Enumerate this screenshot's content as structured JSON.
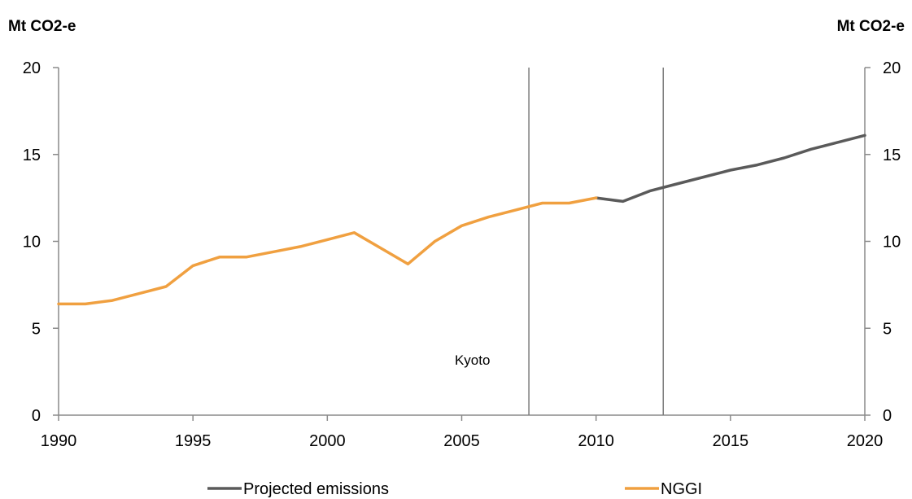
{
  "chart_data": {
    "type": "line",
    "y_unit_left": "Mt CO2-e",
    "y_unit_right": "Mt CO2-e",
    "xlim": [
      1990,
      2020
    ],
    "ylim": [
      0,
      20
    ],
    "x_ticks": [
      1990,
      1995,
      2000,
      2005,
      2010,
      2015,
      2020
    ],
    "y_ticks": [
      0,
      5,
      10,
      15,
      20
    ],
    "grid": false,
    "legend_position": "bottom",
    "series": [
      {
        "name": "Projected emissions",
        "color": "#5a5a5a",
        "points": [
          [
            2010,
            12.5
          ],
          [
            2011,
            12.3
          ],
          [
            2012,
            12.9
          ],
          [
            2013,
            13.3
          ],
          [
            2014,
            13.7
          ],
          [
            2015,
            14.1
          ],
          [
            2016,
            14.4
          ],
          [
            2017,
            14.8
          ],
          [
            2018,
            15.3
          ],
          [
            2019,
            15.7
          ],
          [
            2020,
            16.1
          ]
        ]
      },
      {
        "name": "NGGI",
        "color": "#f0a040",
        "points": [
          [
            1990,
            6.4
          ],
          [
            1991,
            6.4
          ],
          [
            1992,
            6.6
          ],
          [
            1993,
            7.0
          ],
          [
            1994,
            7.4
          ],
          [
            1995,
            8.6
          ],
          [
            1996,
            9.1
          ],
          [
            1997,
            9.1
          ],
          [
            1998,
            9.4
          ],
          [
            1999,
            9.7
          ],
          [
            2000,
            10.1
          ],
          [
            2001,
            10.5
          ],
          [
            2002,
            9.6
          ],
          [
            2003,
            8.7
          ],
          [
            2004,
            10.0
          ],
          [
            2005,
            10.9
          ],
          [
            2006,
            11.4
          ],
          [
            2007,
            11.8
          ],
          [
            2008,
            12.2
          ],
          [
            2009,
            12.2
          ],
          [
            2010,
            12.5
          ]
        ]
      }
    ],
    "vertical_lines": [
      2007.5,
      2012.5
    ],
    "annotations": [
      {
        "text": "Kyoto",
        "x": 2005.4,
        "y": 2.9
      }
    ]
  }
}
